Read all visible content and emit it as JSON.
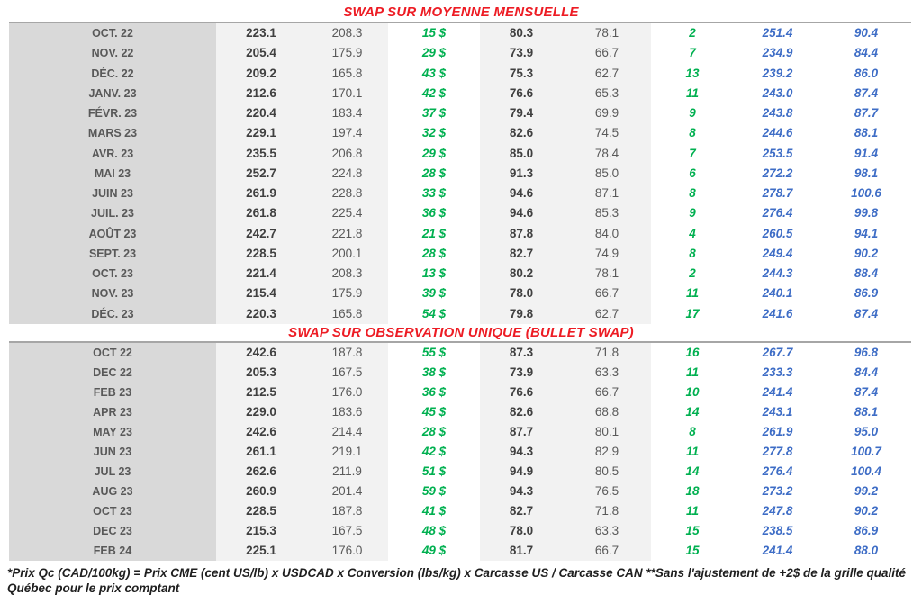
{
  "colors": {
    "title_red": "#ed1c24",
    "gain_green": "#00b050",
    "projection_blue": "#3e6dc6",
    "month_band_gray": "#d9d9d9",
    "value_band_gray": "#f2f2f2",
    "month_text_gray": "#595959",
    "value_bold_gray": "#404040",
    "value_regular_gray": "#595959",
    "rule_gray": "#a6a6a6"
  },
  "tables": [
    {
      "title": "SWAP SUR MOYENNE MENSUELLE",
      "rows": [
        [
          "OCT. 22",
          "223.1",
          "208.3",
          "15 $",
          "80.3",
          "78.1",
          "2",
          "251.4",
          "90.4"
        ],
        [
          "NOV. 22",
          "205.4",
          "175.9",
          "29 $",
          "73.9",
          "66.7",
          "7",
          "234.9",
          "84.4"
        ],
        [
          "DÉC. 22",
          "209.2",
          "165.8",
          "43 $",
          "75.3",
          "62.7",
          "13",
          "239.2",
          "86.0"
        ],
        [
          "JANV. 23",
          "212.6",
          "170.1",
          "42 $",
          "76.6",
          "65.3",
          "11",
          "243.0",
          "87.4"
        ],
        [
          "FÉVR. 23",
          "220.4",
          "183.4",
          "37 $",
          "79.4",
          "69.9",
          "9",
          "243.8",
          "87.7"
        ],
        [
          "MARS 23",
          "229.1",
          "197.4",
          "32 $",
          "82.6",
          "74.5",
          "8",
          "244.6",
          "88.1"
        ],
        [
          "AVR. 23",
          "235.5",
          "206.8",
          "29 $",
          "85.0",
          "78.4",
          "7",
          "253.5",
          "91.4"
        ],
        [
          "MAI 23",
          "252.7",
          "224.8",
          "28 $",
          "91.3",
          "85.0",
          "6",
          "272.2",
          "98.1"
        ],
        [
          "JUIN 23",
          "261.9",
          "228.8",
          "33 $",
          "94.6",
          "87.1",
          "8",
          "278.7",
          "100.6"
        ],
        [
          "JUIL. 23",
          "261.8",
          "225.4",
          "36 $",
          "94.6",
          "85.3",
          "9",
          "276.4",
          "99.8"
        ],
        [
          "AOÛT 23",
          "242.7",
          "221.8",
          "21 $",
          "87.8",
          "84.0",
          "4",
          "260.5",
          "94.1"
        ],
        [
          "SEPT. 23",
          "228.5",
          "200.1",
          "28 $",
          "82.7",
          "74.9",
          "8",
          "249.4",
          "90.2"
        ],
        [
          "OCT. 23",
          "221.4",
          "208.3",
          "13 $",
          "80.2",
          "78.1",
          "2",
          "244.3",
          "88.4"
        ],
        [
          "NOV. 23",
          "215.4",
          "175.9",
          "39 $",
          "78.0",
          "66.7",
          "11",
          "240.1",
          "86.9"
        ],
        [
          "DÉC. 23",
          "220.3",
          "165.8",
          "54 $",
          "79.8",
          "62.7",
          "17",
          "241.6",
          "87.4"
        ]
      ]
    },
    {
      "title": "SWAP SUR OBSERVATION UNIQUE (BULLET SWAP)",
      "rows": [
        [
          "OCT 22",
          "242.6",
          "187.8",
          "55 $",
          "87.3",
          "71.8",
          "16",
          "267.7",
          "96.8"
        ],
        [
          "DEC 22",
          "205.3",
          "167.5",
          "38 $",
          "73.9",
          "63.3",
          "11",
          "233.3",
          "84.4"
        ],
        [
          "FEB 23",
          "212.5",
          "176.0",
          "36 $",
          "76.6",
          "66.7",
          "10",
          "241.4",
          "87.4"
        ],
        [
          "APR 23",
          "229.0",
          "183.6",
          "45 $",
          "82.6",
          "68.8",
          "14",
          "243.1",
          "88.1"
        ],
        [
          "MAY 23",
          "242.6",
          "214.4",
          "28 $",
          "87.7",
          "80.1",
          "8",
          "261.9",
          "95.0"
        ],
        [
          "JUN 23",
          "261.1",
          "219.1",
          "42 $",
          "94.3",
          "82.9",
          "11",
          "277.8",
          "100.7"
        ],
        [
          "JUL 23",
          "262.6",
          "211.9",
          "51 $",
          "94.9",
          "80.5",
          "14",
          "276.4",
          "100.4"
        ],
        [
          "AUG 23",
          "260.9",
          "201.4",
          "59 $",
          "94.3",
          "76.5",
          "18",
          "273.2",
          "99.2"
        ],
        [
          "OCT 23",
          "228.5",
          "187.8",
          "41 $",
          "82.7",
          "71.8",
          "11",
          "247.8",
          "90.2"
        ],
        [
          "DEC 23",
          "215.3",
          "167.5",
          "48 $",
          "78.0",
          "63.3",
          "15",
          "238.5",
          "86.9"
        ],
        [
          "FEB 24",
          "225.1",
          "176.0",
          "49 $",
          "81.7",
          "66.7",
          "15",
          "241.4",
          "88.0"
        ]
      ]
    }
  ],
  "footnote": {
    "line1": "*Prix Qc (CAD/100kg) = Prix CME (cent US/lb) x USDCAD x Conversion (lbs/kg) x Carcasse US / Carcasse CAN **Sans l'ajustement de +2$ de la grille qualité",
    "line2": "Québec pour le prix comptant"
  }
}
